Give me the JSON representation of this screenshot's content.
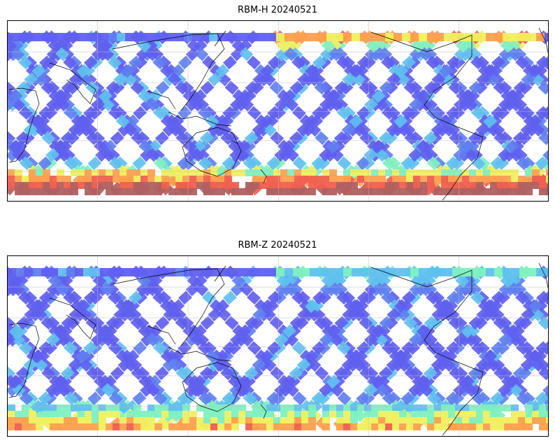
{
  "panels": [
    {
      "title": "RBM-H 20240521",
      "south_band_level": "high",
      "palette": [
        "#b06060",
        "#f06050",
        "#ffa050",
        "#f0f060",
        "#80f0c0",
        "#60c0f0",
        "#6080f0",
        "#6060f0"
      ]
    },
    {
      "title": "RBM-Z 20240521",
      "south_band_level": "moderate",
      "palette": [
        "#f06050",
        "#ffa050",
        "#f0f060",
        "#80f0c0",
        "#60c0f0",
        "#6080f0",
        "#6060f0"
      ]
    }
  ],
  "map": {
    "projection": "PlateCarree",
    "central_longitude": 180,
    "gridlines": true,
    "coastlines": true
  }
}
